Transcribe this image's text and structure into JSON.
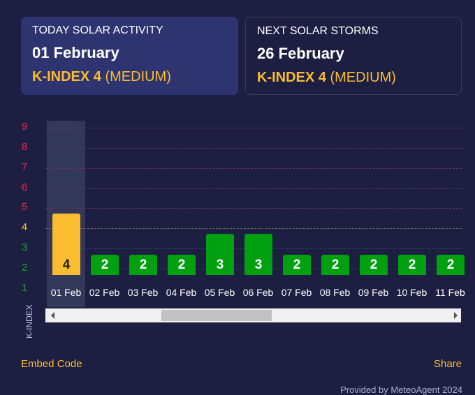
{
  "today": {
    "label": "TODAY SOLAR ACTIVITY",
    "date": "01 February",
    "kindex": "K-INDEX 4",
    "level": "(MEDIUM)"
  },
  "next": {
    "label": "NEXT SOLAR STORMS",
    "date": "26 February",
    "kindex": "K-INDEX 4",
    "level": "(MEDIUM)"
  },
  "colors": {
    "low": "#00a010",
    "medium": "#fbbd2f",
    "high": "#e0304a",
    "background": "#1c1f42"
  },
  "chart_data": {
    "type": "bar",
    "ylabel": "K-INDEX",
    "ylim": [
      1,
      9
    ],
    "yticks": [
      "1",
      "2",
      "3",
      "4",
      "5",
      "6",
      "7",
      "8",
      "9"
    ],
    "ytick_colors": [
      "#1f9a36",
      "#1f9a36",
      "#1f9a36",
      "#fbbd2f",
      "#e0304a",
      "#e0304a",
      "#e0304a",
      "#e0304a",
      "#e0304a"
    ],
    "categories": [
      "01 Feb",
      "02 Feb",
      "03 Feb",
      "04 Feb",
      "05 Feb",
      "06 Feb",
      "07 Feb",
      "08 Feb",
      "09 Feb",
      "10 Feb",
      "11 Feb"
    ],
    "values": [
      4,
      2,
      2,
      2,
      3,
      3,
      2,
      2,
      2,
      2,
      2
    ],
    "highlighted": "01 Feb",
    "grid": true
  },
  "scrollbar": {
    "position_percent": 28
  },
  "footer": {
    "embed": "Embed Code",
    "share": "Share",
    "credit": "Provided by MeteoAgent 2024"
  }
}
